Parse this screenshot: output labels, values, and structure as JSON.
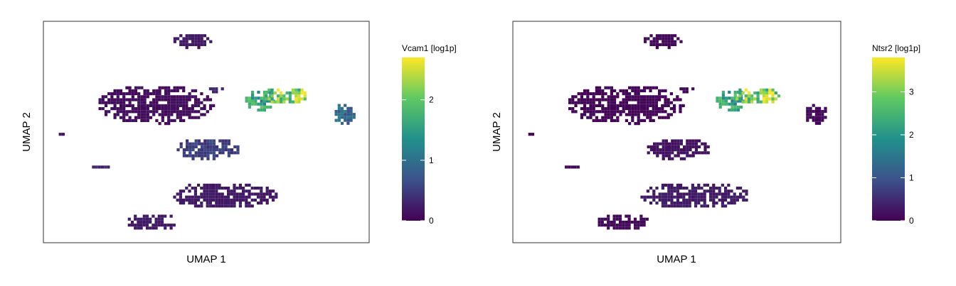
{
  "chart_data": [
    {
      "type": "scatter",
      "subtype": "umap-hexbin-feature-plot",
      "xlabel": "UMAP 1",
      "ylabel": "UMAP 2",
      "colorbar": {
        "title": "Vcam1 [log1p]",
        "range": [
          0,
          2.7
        ],
        "ticks": [
          0,
          1,
          2
        ],
        "colormap": [
          "#440154",
          "#3b528b",
          "#21918c",
          "#5ec962",
          "#fde725"
        ]
      },
      "clusters": [
        {
          "name": "top",
          "cx": 0.45,
          "cy": 0.92,
          "rx": 0.06,
          "ry": 0.035,
          "value": 0.2
        },
        {
          "name": "large-left",
          "cx": 0.34,
          "cy": 0.63,
          "rx": 0.18,
          "ry": 0.09,
          "value": 0.1
        },
        {
          "name": "small-dots-center",
          "cx": 0.52,
          "cy": 0.7,
          "rx": 0.03,
          "ry": 0.015,
          "value": 0.3
        },
        {
          "name": "upper-right-a",
          "cx": 0.66,
          "cy": 0.65,
          "rx": 0.05,
          "ry": 0.05,
          "value": 1.6
        },
        {
          "name": "upper-right-b",
          "cx": 0.74,
          "cy": 0.67,
          "rx": 0.07,
          "ry": 0.04,
          "value": 2.1
        },
        {
          "name": "right-ring",
          "cx": 0.92,
          "cy": 0.59,
          "rx": 0.035,
          "ry": 0.05,
          "value": 0.9
        },
        {
          "name": "middle-branch",
          "cx": 0.5,
          "cy": 0.43,
          "rx": 0.1,
          "ry": 0.05,
          "value": 0.5
        },
        {
          "name": "left-small",
          "cx": 0.17,
          "cy": 0.35,
          "rx": 0.03,
          "ry": 0.012,
          "value": 0.3
        },
        {
          "name": "far-left-dot",
          "cx": 0.05,
          "cy": 0.5,
          "rx": 0.012,
          "ry": 0.01,
          "value": 0.2
        },
        {
          "name": "lower-trunk",
          "cx": 0.55,
          "cy": 0.22,
          "rx": 0.17,
          "ry": 0.06,
          "value": 0.2
        },
        {
          "name": "bottom-left",
          "cx": 0.33,
          "cy": 0.1,
          "rx": 0.08,
          "ry": 0.04,
          "value": 0.2
        }
      ]
    },
    {
      "type": "scatter",
      "subtype": "umap-hexbin-feature-plot",
      "xlabel": "UMAP 1",
      "ylabel": "UMAP 2",
      "colorbar": {
        "title": "Ntsr2 [log1p]",
        "range": [
          0,
          3.8
        ],
        "ticks": [
          0,
          1,
          2,
          3
        ],
        "colormap": [
          "#440154",
          "#3b528b",
          "#21918c",
          "#5ec962",
          "#fde725"
        ]
      },
      "clusters": [
        {
          "name": "top",
          "cx": 0.45,
          "cy": 0.92,
          "rx": 0.06,
          "ry": 0.035,
          "value": 0.1
        },
        {
          "name": "large-left",
          "cx": 0.34,
          "cy": 0.63,
          "rx": 0.18,
          "ry": 0.09,
          "value": 0.05
        },
        {
          "name": "small-dots-center",
          "cx": 0.52,
          "cy": 0.7,
          "rx": 0.03,
          "ry": 0.015,
          "value": 0.1
        },
        {
          "name": "upper-right-a",
          "cx": 0.66,
          "cy": 0.65,
          "rx": 0.05,
          "ry": 0.05,
          "value": 2.2
        },
        {
          "name": "upper-right-b",
          "cx": 0.74,
          "cy": 0.67,
          "rx": 0.07,
          "ry": 0.04,
          "value": 3.0
        },
        {
          "name": "right-ring",
          "cx": 0.92,
          "cy": 0.59,
          "rx": 0.035,
          "ry": 0.05,
          "value": 0.1
        },
        {
          "name": "middle-branch",
          "cx": 0.5,
          "cy": 0.43,
          "rx": 0.1,
          "ry": 0.05,
          "value": 0.2
        },
        {
          "name": "left-small",
          "cx": 0.17,
          "cy": 0.35,
          "rx": 0.03,
          "ry": 0.012,
          "value": 0.1
        },
        {
          "name": "far-left-dot",
          "cx": 0.05,
          "cy": 0.5,
          "rx": 0.012,
          "ry": 0.01,
          "value": 0.05
        },
        {
          "name": "lower-trunk",
          "cx": 0.55,
          "cy": 0.22,
          "rx": 0.17,
          "ry": 0.06,
          "value": 0.3
        },
        {
          "name": "bottom-left",
          "cx": 0.33,
          "cy": 0.1,
          "rx": 0.08,
          "ry": 0.04,
          "value": 0.1
        }
      ]
    }
  ]
}
